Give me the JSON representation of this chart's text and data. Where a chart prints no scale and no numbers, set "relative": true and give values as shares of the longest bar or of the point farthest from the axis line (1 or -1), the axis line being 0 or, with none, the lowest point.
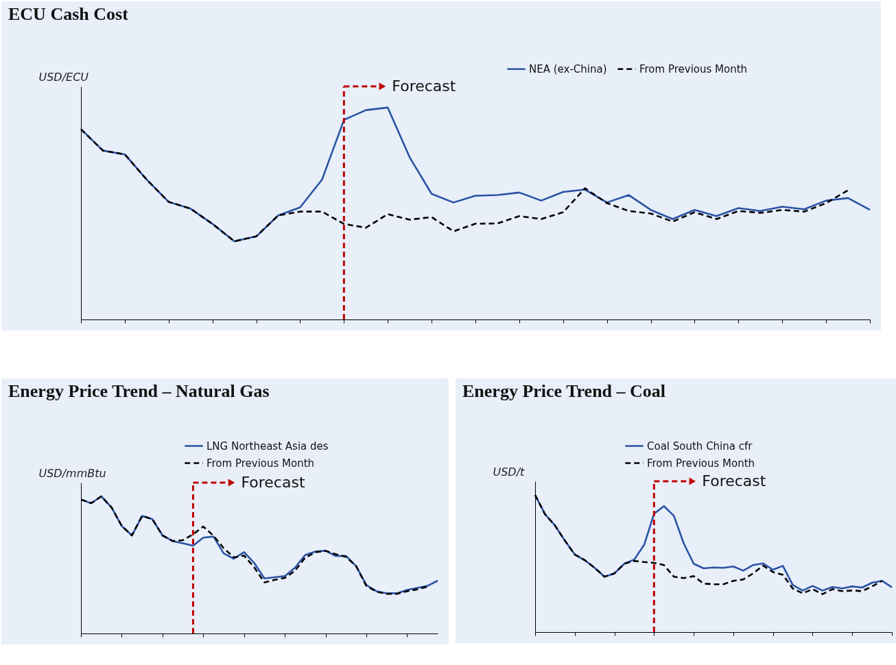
{
  "chart_data": [
    {
      "type": "line",
      "title": "ECU Cash Cost",
      "ylabel": "USD/ECU",
      "relative": true,
      "legend": "top right",
      "annotations": [
        "Forecast"
      ],
      "categories": [
        null,
        null,
        null,
        null,
        null,
        null,
        null,
        null,
        null,
        null,
        null,
        null,
        null,
        null,
        null,
        null,
        null,
        null,
        null,
        null,
        null,
        null,
        null,
        null,
        null,
        null,
        null,
        null,
        null,
        null,
        null,
        null,
        null,
        null,
        null,
        null,
        null
      ],
      "series": [
        {
          "name": "NEA (ex-China)",
          "color": "#2a52a3",
          "line_style": "solid",
          "values": [
            0.898,
            0.797,
            0.779,
            0.66,
            0.555,
            0.523,
            0.451,
            0.369,
            0.392,
            0.491,
            0.529,
            0.66,
            0.942,
            0.988,
            1,
            0.765,
            0.593,
            0.552,
            0.584,
            0.587,
            0.599,
            0.561,
            0.602,
            0.613,
            0.552,
            0.587,
            0.517,
            0.474,
            0.517,
            0.488,
            0.526,
            0.512,
            0.532,
            0.52,
            0.561,
            0.573,
            0.517
          ]
        },
        {
          "name": "From Previous Month",
          "color": "#000000",
          "line_style": "dashed",
          "values": [
            0.898,
            0.797,
            0.779,
            0.66,
            0.555,
            0.523,
            0.451,
            0.369,
            0.392,
            0.491,
            0.509,
            0.509,
            0.451,
            0.433,
            0.497,
            0.471,
            0.483,
            0.416,
            0.452,
            0.453,
            0.488,
            0.474,
            0.506,
            0.619,
            0.549,
            0.512,
            0.5,
            0.462,
            0.506,
            0.474,
            0.512,
            0.503,
            0.517,
            0.509,
            0.549,
            0.61,
            null
          ]
        }
      ]
    },
    {
      "type": "line",
      "title": "Energy Price Trend – Natural Gas",
      "ylabel": "USD/mmBtu",
      "relative": true,
      "legend": "top",
      "annotations": [
        "Forecast"
      ],
      "categories": [
        null,
        null,
        null,
        null,
        null,
        null,
        null,
        null,
        null,
        null,
        null,
        null,
        null,
        null,
        null,
        null,
        null,
        null,
        null,
        null,
        null,
        null,
        null,
        null,
        null,
        null,
        null,
        null,
        null,
        null,
        null,
        null,
        null,
        null,
        null,
        null
      ],
      "series": [
        {
          "name": "LNG Northeast Asia des",
          "color": "#2a52a3",
          "line_style": "solid",
          "values": [
            0.977,
            0.95,
            1,
            0.919,
            0.784,
            0.715,
            0.857,
            0.834,
            0.715,
            0.674,
            0.657,
            0.64,
            0.699,
            0.707,
            0.584,
            0.545,
            0.593,
            0.514,
            0.401,
            0.41,
            0.418,
            0.48,
            0.572,
            0.597,
            0.603,
            0.565,
            0.566,
            0.491,
            0.353,
            0.308,
            0.293,
            0.293,
            0.318,
            0.333,
            0.347,
            0.385
          ]
        },
        {
          "name": "From Previous Month",
          "color": "#000000",
          "line_style": "dashed",
          "values": [
            0.977,
            0.95,
            1,
            0.919,
            0.784,
            0.715,
            0.857,
            0.834,
            0.715,
            0.674,
            0.68,
            0.723,
            0.78,
            0.713,
            0.622,
            0.555,
            0.568,
            0.482,
            0.372,
            0.391,
            0.405,
            0.457,
            0.553,
            0.592,
            0.603,
            0.578,
            0.559,
            0.491,
            0.347,
            0.304,
            0.289,
            0.289,
            0.308,
            0.322,
            0.341,
            null
          ]
        }
      ]
    },
    {
      "type": "line",
      "title": "Energy Price Trend – Coal",
      "ylabel": "USD/t",
      "relative": true,
      "legend": "top",
      "annotations": [
        "Forecast"
      ],
      "categories": [
        null,
        null,
        null,
        null,
        null,
        null,
        null,
        null,
        null,
        null,
        null,
        null,
        null,
        null,
        null,
        null,
        null,
        null,
        null,
        null,
        null,
        null,
        null,
        null,
        null,
        null,
        null,
        null,
        null,
        null,
        null,
        null,
        null,
        null,
        null,
        null,
        null
      ],
      "series": [
        {
          "name": "Coal South China cfr",
          "color": "#2a52a3",
          "line_style": "solid",
          "values": [
            1,
            0.859,
            0.778,
            0.667,
            0.566,
            0.525,
            0.469,
            0.404,
            0.428,
            0.499,
            0.529,
            0.636,
            0.863,
            0.919,
            0.848,
            0.646,
            0.499,
            0.465,
            0.471,
            0.469,
            0.479,
            0.448,
            0.489,
            0.501,
            0.455,
            0.483,
            0.343,
            0.303,
            0.337,
            0.303,
            0.329,
            0.319,
            0.333,
            0.325,
            0.36,
            0.374,
            0.327
          ]
        },
        {
          "name": "From Previous Month",
          "color": "#000000",
          "line_style": "dashed",
          "values": [
            1,
            0.859,
            0.778,
            0.667,
            0.566,
            0.525,
            0.469,
            0.404,
            0.428,
            0.499,
            0.519,
            0.511,
            0.505,
            0.489,
            0.404,
            0.394,
            0.408,
            0.354,
            0.349,
            0.349,
            0.374,
            0.384,
            0.428,
            0.485,
            0.438,
            0.418,
            0.317,
            0.283,
            0.313,
            0.277,
            0.313,
            0.299,
            0.303,
            0.299,
            0.333,
            0.374,
            null
          ]
        }
      ]
    }
  ]
}
